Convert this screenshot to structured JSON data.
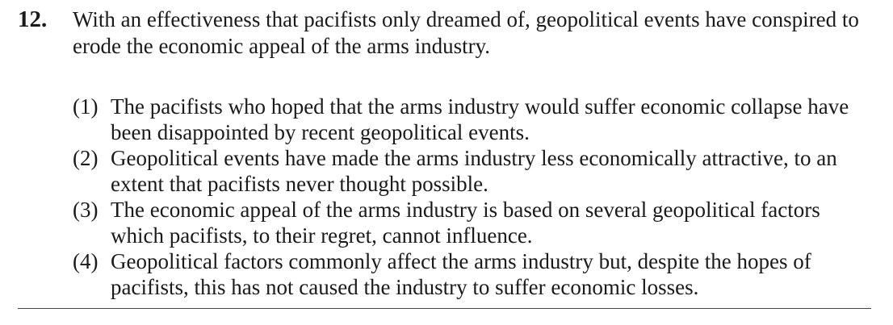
{
  "question": {
    "number": "12.",
    "stem": "With an effectiveness that pacifists only dreamed of, geopolitical events have conspired to erode the economic appeal of the arms industry.",
    "options": [
      {
        "label": "(1)",
        "text": "The pacifists who hoped that the arms industry would suffer economic collapse have been disappointed by recent geopolitical events."
      },
      {
        "label": "(2)",
        "text": "Geopolitical events have made the arms industry less economically attractive, to an extent that pacifists never thought possible."
      },
      {
        "label": "(3)",
        "text": "The economic appeal of the arms industry is based on several geopolitical factors which pacifists, to their regret, cannot influence."
      },
      {
        "label": "(4)",
        "text": "Geopolitical factors commonly affect the arms industry but, despite the hopes of pacifists, this has not caused the industry to suffer economic losses."
      }
    ]
  }
}
